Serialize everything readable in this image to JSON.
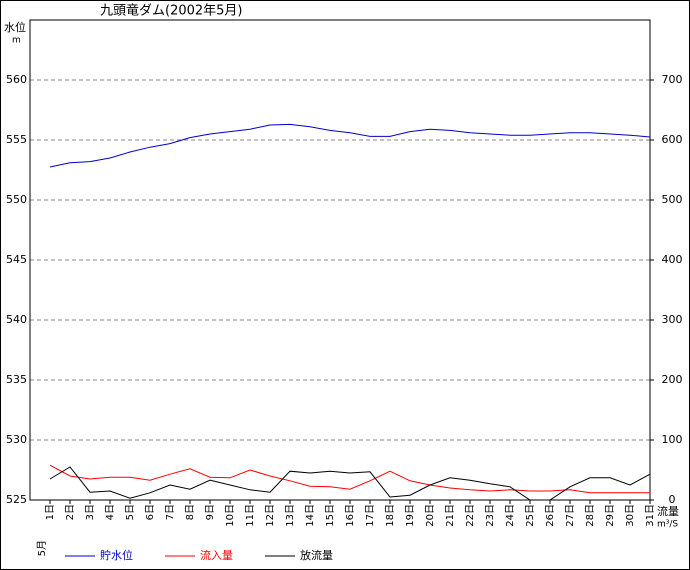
{
  "chart_data": {
    "type": "line",
    "title": "九頭竜ダム(2002年5月)",
    "y_label": "水位",
    "y_unit": "m",
    "y2_label": "流量",
    "y2_unit": "m³/S",
    "month_label": "5月",
    "categories": [
      "1日",
      "2日",
      "3日",
      "4日",
      "5日",
      "6日",
      "7日",
      "8日",
      "9日",
      "10日",
      "11日",
      "12日",
      "13日",
      "14日",
      "15日",
      "16日",
      "17日",
      "18日",
      "19日",
      "20日",
      "21日",
      "22日",
      "23日",
      "24日",
      "25日",
      "26日",
      "27日",
      "28日",
      "29日",
      "30日",
      "31日"
    ],
    "series": [
      {
        "name": "貯水位",
        "color": "#0000cc",
        "axis": "y",
        "values": [
          552.75,
          553.1,
          553.2,
          553.5,
          554.0,
          554.4,
          554.7,
          555.2,
          555.5,
          555.7,
          555.9,
          556.25,
          556.3,
          556.1,
          555.8,
          555.6,
          555.3,
          555.3,
          555.7,
          555.9,
          555.8,
          555.6,
          555.5,
          555.4,
          555.4,
          555.5,
          555.6,
          555.6,
          555.5,
          555.4,
          555.25
        ]
      },
      {
        "name": "流入量",
        "color": "#ff0000",
        "axis": "y2",
        "values": [
          58,
          40,
          35,
          38,
          38,
          33,
          43,
          52,
          38,
          37,
          50,
          40,
          32,
          23,
          22,
          18,
          32,
          48,
          32,
          25,
          20,
          17,
          15,
          17,
          15,
          15,
          17,
          12,
          12,
          12,
          12
        ]
      },
      {
        "name": "放流量",
        "color": "#000000",
        "axis": "y2",
        "values": [
          35,
          55,
          13,
          15,
          3,
          12,
          25,
          18,
          33,
          25,
          17,
          13,
          48,
          45,
          48,
          45,
          47,
          5,
          8,
          25,
          37,
          33,
          27,
          22,
          0,
          0,
          22,
          37,
          37,
          25,
          43
        ]
      }
    ],
    "ylim": [
      525,
      565
    ],
    "yticks": [
      525,
      530,
      535,
      540,
      545,
      550,
      555,
      560
    ],
    "y2lim": [
      0,
      800
    ],
    "y2ticks": [
      0,
      100,
      200,
      300,
      400,
      500,
      600,
      700
    ],
    "grid": true
  }
}
